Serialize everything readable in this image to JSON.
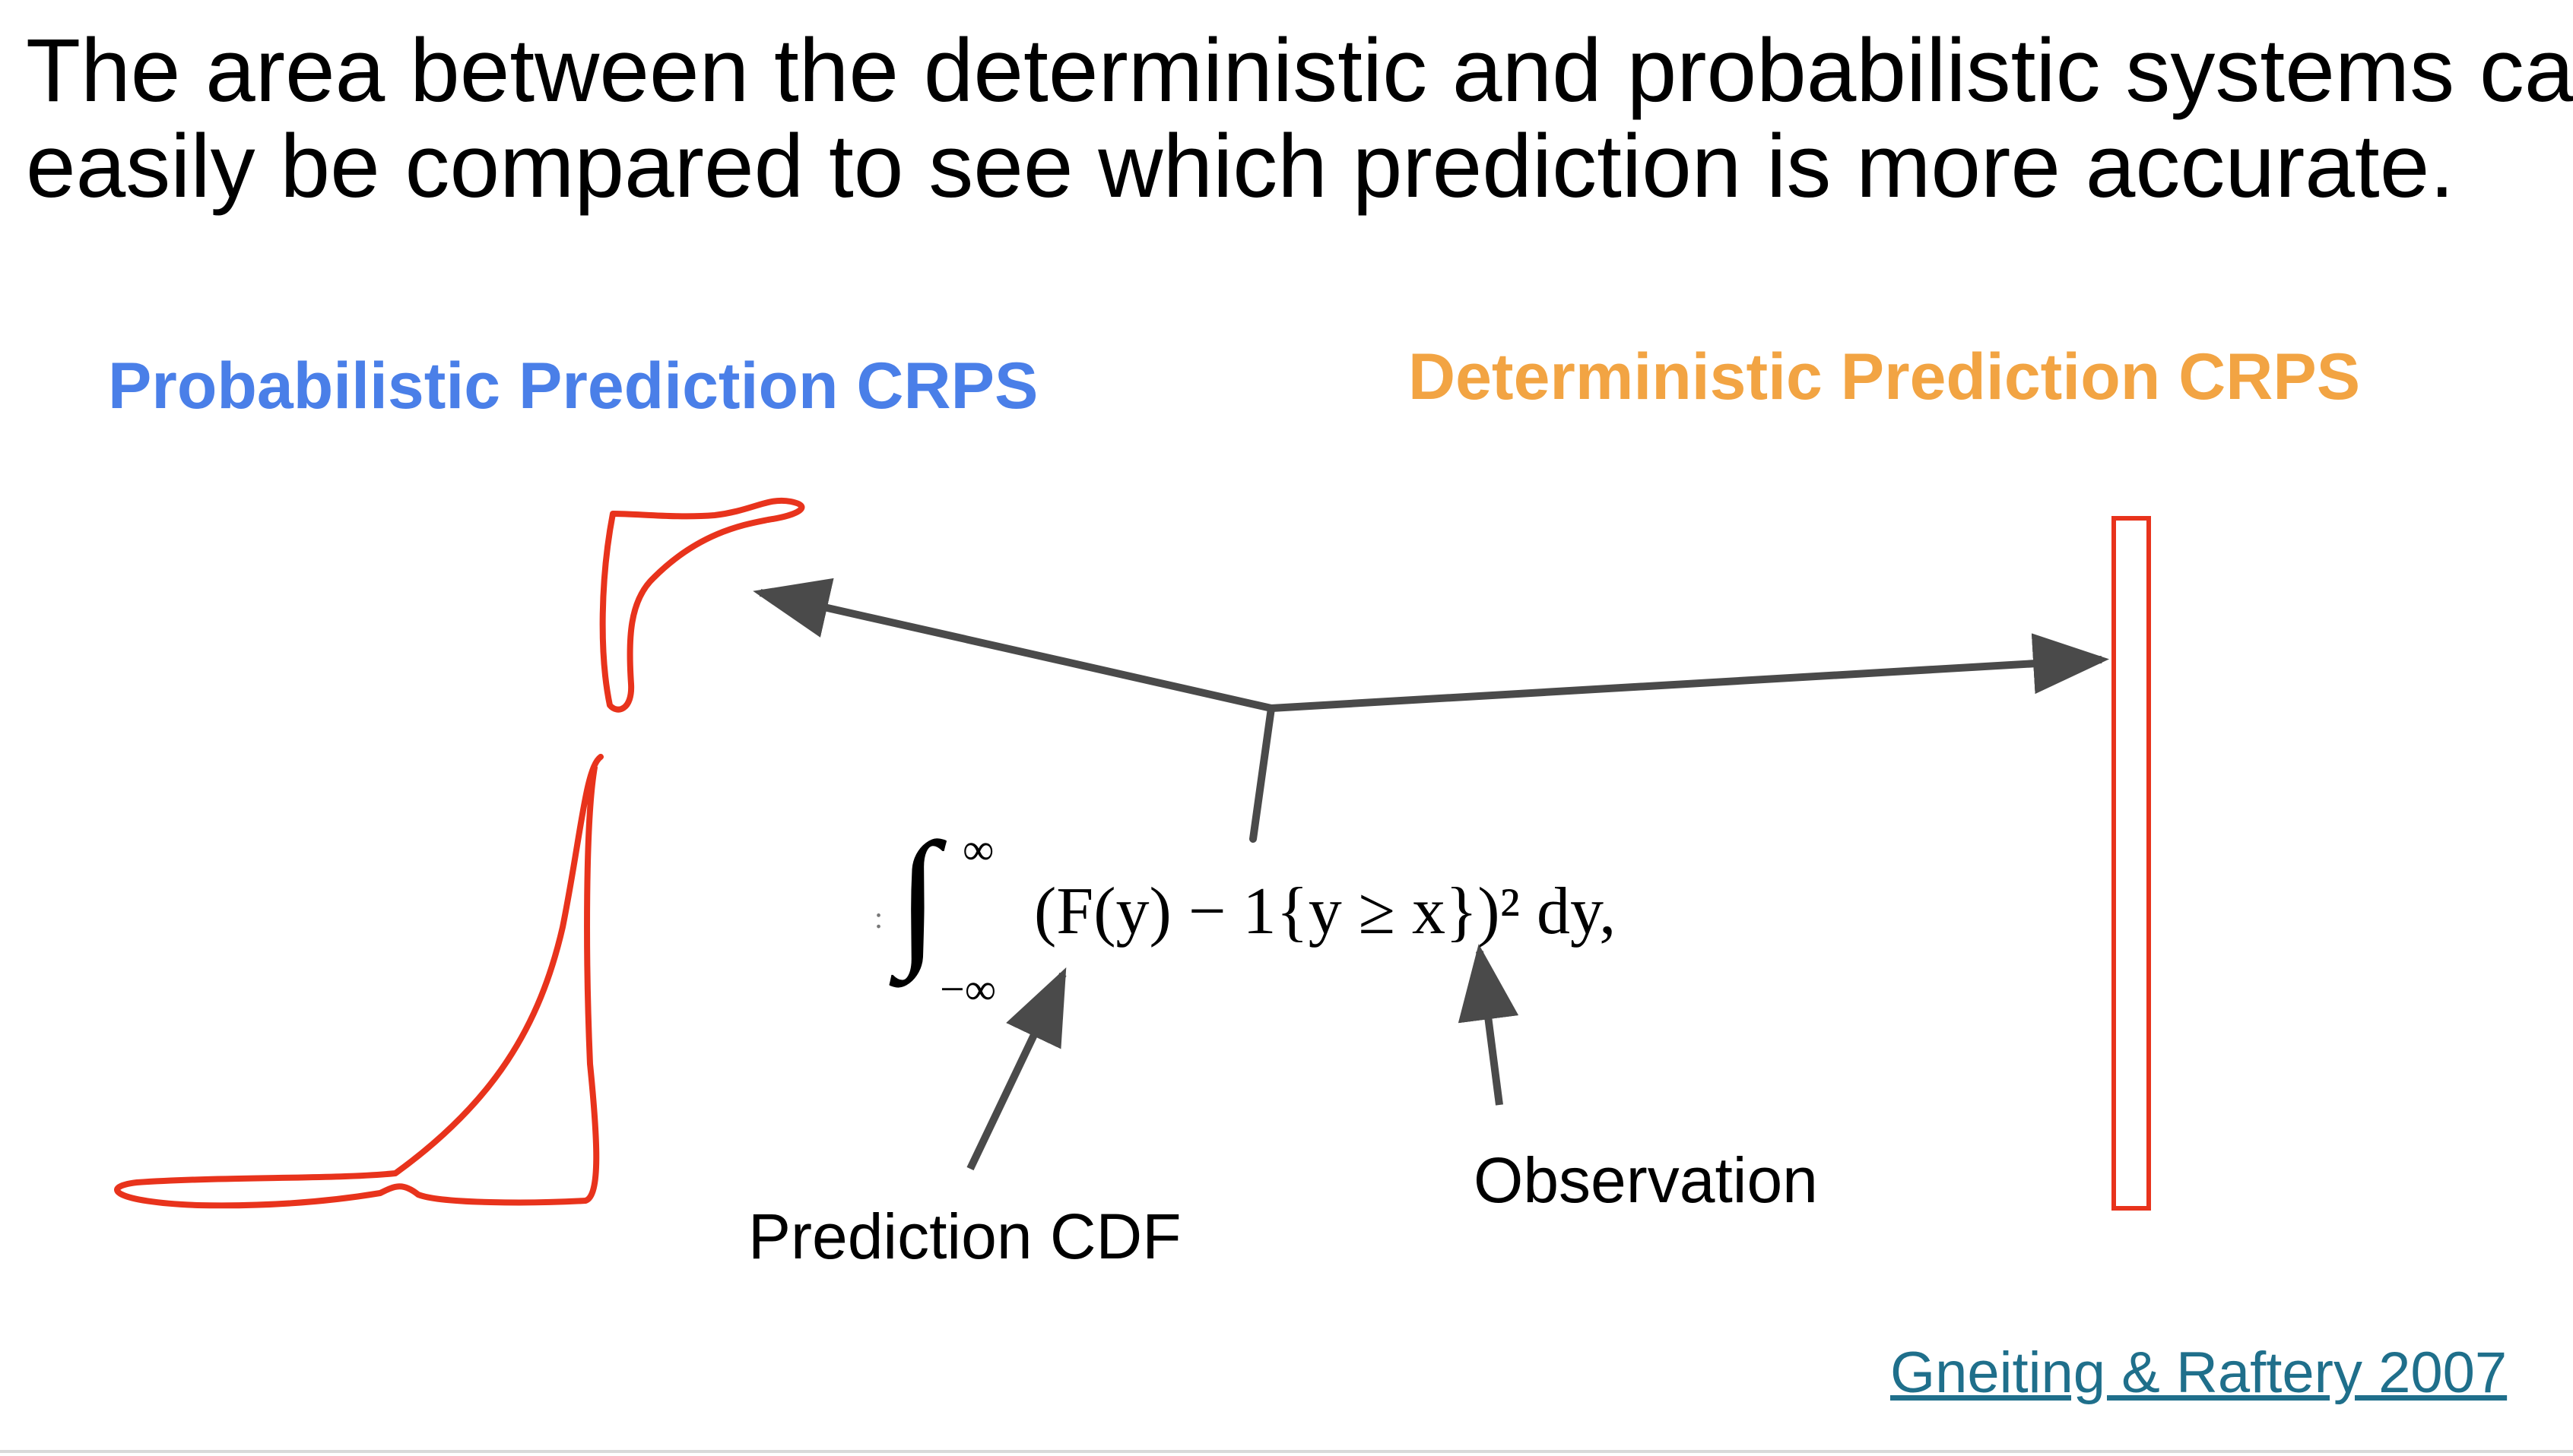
{
  "slide": {
    "title_lines": [
      "The area between the deterministic and probabilistic systems can",
      "easily be compared to see which prediction is more accurate."
    ]
  },
  "headings": {
    "probabilistic": "Probabilistic Prediction CRPS",
    "deterministic": "Deterministic Prediction CRPS"
  },
  "formula": {
    "lead_mark": ":",
    "integral_sign": "∫",
    "upper_limit": "∞",
    "lower_limit": "−∞",
    "integrand": "(F(y) − 1{y ≥ x})² dy,"
  },
  "labels": {
    "prediction_cdf": "Prediction CDF",
    "observation": "Observation"
  },
  "citation": {
    "text": "Gneiting & Raftery 2007"
  },
  "colors": {
    "probabilistic_heading": "#4a7fe8",
    "deterministic_heading": "#f2a443",
    "outline_red": "#e8331c",
    "arrow_gray": "#4a4a4a",
    "citation_link": "#1f6f8b"
  },
  "icons": {
    "arrows": "arrow-icon"
  }
}
